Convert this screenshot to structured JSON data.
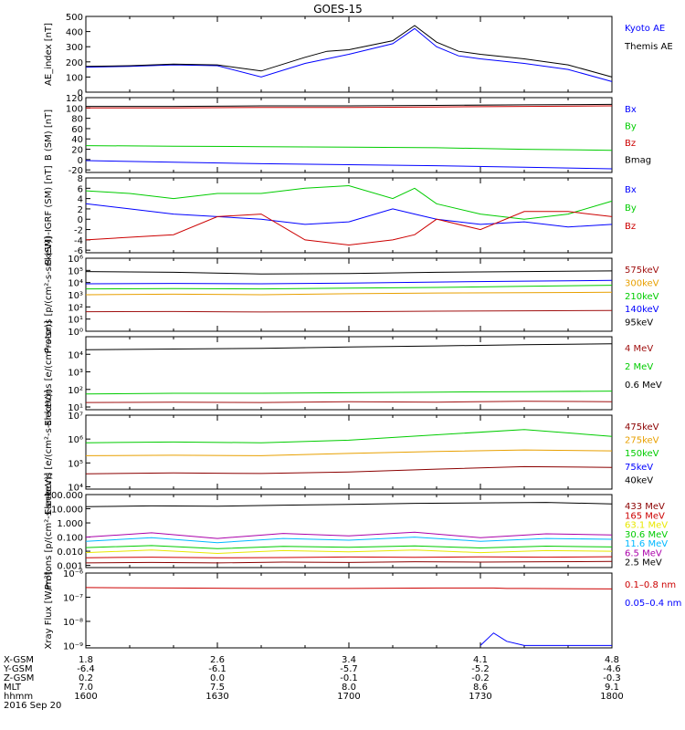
{
  "title": "GOES-15",
  "date_label": "2016 Sep 20",
  "colors": {
    "black": "#000000",
    "blue": "#0000ff",
    "green": "#00cc00",
    "red": "#cc0000",
    "orange": "#e8a000",
    "darkred": "#8b0000",
    "cyan": "#00b8ff",
    "yellow": "#e8e800",
    "purple": "#8a2be2",
    "violet": "#aa00aa",
    "maroon": "#a01010"
  },
  "time_axis": {
    "start": "1600",
    "end": "1800",
    "rows": [
      {
        "label": "X-GSM",
        "values": [
          "1.8",
          "2.6",
          "3.4",
          "4.1",
          "4.8"
        ]
      },
      {
        "label": "Y-GSM",
        "values": [
          "-6.4",
          "-6.1",
          "-5.7",
          "-5.2",
          "-4.6"
        ]
      },
      {
        "label": "Z-GSM",
        "values": [
          "0.2",
          "0.0",
          "-0.1",
          "-0.2",
          "-0.3"
        ]
      },
      {
        "label": "MLT",
        "values": [
          "7.0",
          "7.5",
          "8.0",
          "8.6",
          "9.1"
        ]
      },
      {
        "label": "hhmm",
        "values": [
          "1600",
          "1630",
          "1700",
          "1730",
          "1800"
        ]
      }
    ]
  },
  "chart_data": [
    {
      "type": "line",
      "ylabel": "AE_index [nT]",
      "scale": "linear",
      "ylim": [
        0,
        500
      ],
      "yticks": [
        "0",
        "100",
        "200",
        "300",
        "400",
        "500"
      ],
      "x_minutes": [
        0,
        10,
        20,
        30,
        40,
        50,
        55,
        60,
        70,
        75,
        80,
        85,
        90,
        100,
        110,
        120
      ],
      "series": [
        {
          "name": "Kyoto AE",
          "color": "blue",
          "values": [
            165,
            170,
            180,
            175,
            100,
            190,
            220,
            250,
            320,
            420,
            300,
            240,
            220,
            190,
            150,
            70
          ]
        },
        {
          "name": "Themis AE",
          "color": "black",
          "values": [
            170,
            175,
            185,
            180,
            140,
            230,
            270,
            280,
            340,
            440,
            330,
            270,
            250,
            220,
            180,
            100
          ]
        }
      ]
    },
    {
      "type": "line",
      "ylabel": "B (SM) [nT]",
      "scale": "linear",
      "ylim": [
        -25,
        120
      ],
      "yticks": [
        "-20",
        "0",
        "20",
        "40",
        "60",
        "80",
        "100",
        "120"
      ],
      "x_minutes": [
        0,
        20,
        40,
        60,
        80,
        100,
        120
      ],
      "series": [
        {
          "name": "Bx",
          "color": "blue",
          "values": [
            -2,
            -5,
            -8,
            -10,
            -12,
            -15,
            -18
          ]
        },
        {
          "name": "By",
          "color": "green",
          "values": [
            27,
            26,
            25,
            24,
            23,
            20,
            18
          ]
        },
        {
          "name": "Bz",
          "color": "red",
          "values": [
            100,
            100,
            101,
            101,
            102,
            103,
            104
          ]
        },
        {
          "name": "Bmag",
          "color": "black",
          "values": [
            103,
            103,
            104,
            104,
            105,
            106,
            107
          ]
        }
      ]
    },
    {
      "type": "line",
      "ylabel": "B (SM)-IGRF (SM) [nT]",
      "scale": "linear",
      "ylim": [
        -6.5,
        8
      ],
      "yticks": [
        "-6",
        "-4",
        "-2",
        "0",
        "2",
        "4",
        "6",
        "8"
      ],
      "x_minutes": [
        0,
        10,
        20,
        30,
        40,
        50,
        60,
        70,
        75,
        80,
        90,
        100,
        110,
        120
      ],
      "series": [
        {
          "name": "Bx",
          "color": "blue",
          "values": [
            3,
            2,
            1,
            0.5,
            0,
            -1,
            -0.5,
            2,
            1,
            0,
            -1,
            -0.5,
            -1.5,
            -1
          ]
        },
        {
          "name": "By",
          "color": "green",
          "values": [
            5.5,
            5,
            4,
            5,
            5,
            6,
            6.5,
            4,
            6,
            3,
            1,
            0,
            1,
            3.5
          ]
        },
        {
          "name": "Bz",
          "color": "red",
          "values": [
            -4,
            -3.5,
            -3,
            0.5,
            1,
            -4,
            -5,
            -4,
            -3,
            0,
            -2,
            1.5,
            1.5,
            0.5
          ]
        }
      ]
    },
    {
      "type": "line",
      "ylabel": "Protons [p/(cm²-s-sr-keV)]",
      "scale": "log",
      "ylim": [
        1,
        1000000
      ],
      "yticks": [
        "10⁰",
        "10¹",
        "10²",
        "10³",
        "10⁴",
        "10⁵",
        "10⁶"
      ],
      "x_minutes": [
        0,
        20,
        40,
        60,
        80,
        100,
        120
      ],
      "series": [
        {
          "name": "575keV",
          "color": "maroon",
          "values": [
            40,
            42,
            38,
            40,
            45,
            48,
            50
          ]
        },
        {
          "name": "300keV",
          "color": "orange",
          "values": [
            1000,
            1100,
            1000,
            1200,
            1400,
            1500,
            1600
          ]
        },
        {
          "name": "210keV",
          "color": "green",
          "values": [
            3000,
            3200,
            3000,
            3500,
            4000,
            5000,
            6000
          ]
        },
        {
          "name": "140keV",
          "color": "blue",
          "values": [
            8000,
            8500,
            8000,
            9000,
            11000,
            13000,
            15000
          ]
        },
        {
          "name": "95keV",
          "color": "black",
          "values": [
            80000,
            70000,
            50000,
            55000,
            70000,
            80000,
            90000
          ]
        }
      ]
    },
    {
      "type": "line",
      "ylabel": "Electrons [e/(cm²-s-sr)]",
      "scale": "log",
      "ylim": [
        7,
        100000
      ],
      "yticks": [
        "10¹",
        "10²",
        "10³",
        "10⁴"
      ],
      "x_minutes": [
        0,
        20,
        40,
        60,
        80,
        100,
        120
      ],
      "series": [
        {
          "name": "4 MeV",
          "color": "maroon",
          "values": [
            18,
            19,
            18,
            20,
            19,
            21,
            20
          ]
        },
        {
          "name": "2 MeV",
          "color": "green",
          "values": [
            55,
            60,
            60,
            65,
            70,
            75,
            80
          ]
        },
        {
          "name": "0.6 MeV",
          "color": "black",
          "values": [
            18000,
            20000,
            22000,
            26000,
            30000,
            35000,
            40000
          ]
        }
      ]
    },
    {
      "type": "line",
      "ylabel": "Electrons [e/(cm²-s-sr-keV)]",
      "scale": "log",
      "ylim": [
        8000,
        10000000
      ],
      "yticks": [
        "10⁴",
        "10⁵",
        "10⁶",
        "10⁷"
      ],
      "x_minutes": [
        0,
        20,
        40,
        60,
        80,
        100,
        120
      ],
      "series": [
        {
          "name": "475keV",
          "color": "darkred",
          "values": [
            35000,
            38000,
            36000,
            42000,
            55000,
            70000,
            65000
          ]
        },
        {
          "name": "275keV",
          "color": "orange",
          "values": [
            200000,
            210000,
            200000,
            250000,
            300000,
            350000,
            320000
          ]
        },
        {
          "name": "150keV",
          "color": "green",
          "values": [
            700000,
            750000,
            700000,
            900000,
            1500000,
            2500000,
            1300000
          ]
        },
        {
          "name": "75keV",
          "color": "blue",
          "values": [
            null,
            null,
            null,
            null,
            null,
            null,
            null
          ]
        },
        {
          "name": "40keV",
          "color": "black",
          "values": [
            null,
            null,
            null,
            null,
            null,
            null,
            null
          ]
        }
      ]
    },
    {
      "type": "line",
      "ylabel": "Protons [p/(cm²-s-sr-keV)]",
      "scale": "log",
      "ylim": [
        0.0007,
        100
      ],
      "yticks": [
        "0.001",
        "0.010",
        "0.100",
        "1.000",
        "10.000",
        "100.000"
      ],
      "x_minutes": [
        0,
        15,
        30,
        45,
        60,
        75,
        90,
        105,
        120
      ],
      "series": [
        {
          "name": "433 MeV",
          "color": "darkred",
          "values": [
            0.0015,
            0.0016,
            0.0015,
            0.0017,
            0.0016,
            0.0018,
            0.0017,
            0.0018,
            0.0019
          ]
        },
        {
          "name": "165 MeV",
          "color": "red",
          "values": [
            0.0035,
            0.0038,
            0.0034,
            0.0036,
            0.0039,
            0.0037,
            0.004,
            0.0038,
            0.0041
          ]
        },
        {
          "name": "63.1 MeV",
          "color": "yellow",
          "values": [
            0.008,
            0.012,
            0.007,
            0.011,
            0.009,
            0.012,
            0.008,
            0.011,
            0.01
          ]
        },
        {
          "name": "30.6 MeV",
          "color": "green",
          "values": [
            0.018,
            0.025,
            0.015,
            0.022,
            0.019,
            0.024,
            0.017,
            0.023,
            0.02
          ]
        },
        {
          "name": "11.6 MeV",
          "color": "cyan",
          "values": [
            0.05,
            0.09,
            0.04,
            0.08,
            0.06,
            0.1,
            0.05,
            0.08,
            0.07
          ]
        },
        {
          "name": "6.5 MeV",
          "color": "violet",
          "values": [
            0.1,
            0.2,
            0.08,
            0.18,
            0.12,
            0.22,
            0.09,
            0.17,
            0.14
          ]
        },
        {
          "name": "2.5 MeV",
          "color": "black",
          "values": [
            14,
            16,
            15,
            18,
            20,
            24,
            26,
            28,
            22
          ]
        }
      ]
    },
    {
      "type": "line",
      "ylabel": "Xray Flux [W/m²]",
      "scale": "log",
      "ylim": [
        8e-10,
        1e-06
      ],
      "yticks": [
        "10⁻⁹",
        "10⁻⁸",
        "10⁻⁷",
        "10⁻⁶"
      ],
      "x_minutes": [
        0,
        20,
        40,
        60,
        80,
        90,
        93,
        96,
        100,
        120
      ],
      "series": [
        {
          "name": "0.1–0.8 nm",
          "color": "red",
          "values": [
            2.5e-07,
            2.4e-07,
            2.3e-07,
            2.3e-07,
            2.4e-07,
            2.4e-07,
            2.4e-07,
            2.3e-07,
            2.3e-07,
            2.2e-07
          ]
        },
        {
          "name": "0.05–0.4 nm",
          "color": "blue",
          "values": [
            null,
            null,
            null,
            null,
            null,
            1e-09,
            3.3e-09,
            1.5e-09,
            1e-09,
            1e-09
          ]
        }
      ]
    }
  ]
}
